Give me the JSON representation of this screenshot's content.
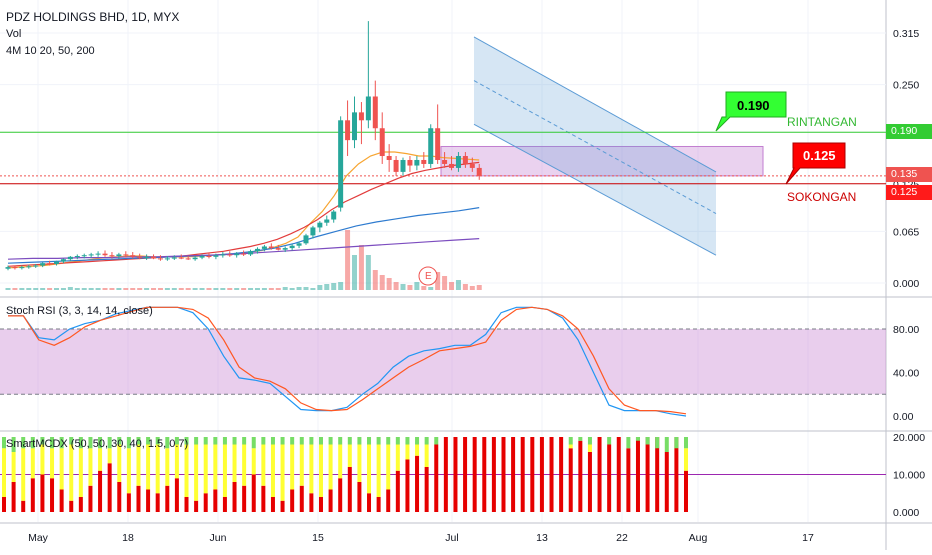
{
  "header": {
    "title": "PDZ HOLDINGS BHD, 1D, MYX",
    "vol_label": "Vol",
    "ma_label": "4M 10 20, 50, 200"
  },
  "panes": {
    "rsi_label": "Stoch RSI (3, 3, 14, 14, close)",
    "mcdx_label": "SmartMCDX (50, 50, 30, 40, 1.5, 0.7)"
  },
  "annotations": {
    "resistance_value": "0.190",
    "resistance_text": "RINTANGAN",
    "support_value": "0.125",
    "support_text": "SOKONGAN",
    "earnings_marker": "E"
  },
  "price_tags": {
    "resistance": "0.190",
    "last": "0.135",
    "support": "0.125"
  },
  "colors": {
    "up": "#26a69a",
    "down": "#ef5350",
    "resistance": "#33cc33",
    "support": "#cc0000",
    "channel": "#5b9bd5",
    "zone": "#c27ed0",
    "rsi_k": "#2196f3",
    "rsi_d": "#ff5722",
    "mcdx_red": "#e60000",
    "mcdx_yellow": "#ffff33",
    "mcdx_green": "#77dd66"
  },
  "chart_data": [
    {
      "type": "candlestick",
      "title": "PDZ HOLDINGS BHD, 1D, MYX",
      "y_ticks": [
        "0.315",
        "0.250",
        "0.190",
        "0.125",
        "0.065",
        "0.000"
      ],
      "x_ticks": [
        "May",
        "18",
        "Jun",
        "15",
        "Jul",
        "13",
        "22",
        "Aug",
        "17"
      ],
      "ohlc": [
        [
          0.018,
          0.022,
          0.016,
          0.02
        ],
        [
          0.02,
          0.022,
          0.017,
          0.019
        ],
        [
          0.019,
          0.022,
          0.017,
          0.02
        ],
        [
          0.02,
          0.023,
          0.018,
          0.021
        ],
        [
          0.021,
          0.024,
          0.019,
          0.022
        ],
        [
          0.022,
          0.026,
          0.02,
          0.025
        ],
        [
          0.025,
          0.028,
          0.022,
          0.024
        ],
        [
          0.024,
          0.028,
          0.022,
          0.027
        ],
        [
          0.027,
          0.031,
          0.025,
          0.03
        ],
        [
          0.03,
          0.034,
          0.028,
          0.033
        ],
        [
          0.033,
          0.036,
          0.03,
          0.034
        ],
        [
          0.034,
          0.037,
          0.031,
          0.035
        ],
        [
          0.035,
          0.038,
          0.032,
          0.036
        ],
        [
          0.036,
          0.04,
          0.033,
          0.037
        ],
        [
          0.037,
          0.041,
          0.033,
          0.035
        ],
        [
          0.035,
          0.039,
          0.031,
          0.034
        ],
        [
          0.034,
          0.038,
          0.03,
          0.036
        ],
        [
          0.036,
          0.04,
          0.032,
          0.035
        ],
        [
          0.035,
          0.039,
          0.031,
          0.033
        ],
        [
          0.033,
          0.037,
          0.03,
          0.032
        ],
        [
          0.032,
          0.036,
          0.029,
          0.033
        ],
        [
          0.033,
          0.036,
          0.03,
          0.031
        ],
        [
          0.031,
          0.035,
          0.028,
          0.03
        ],
        [
          0.03,
          0.034,
          0.028,
          0.031
        ],
        [
          0.031,
          0.035,
          0.029,
          0.032
        ],
        [
          0.032,
          0.036,
          0.03,
          0.031
        ],
        [
          0.031,
          0.034,
          0.029,
          0.03
        ],
        [
          0.03,
          0.034,
          0.028,
          0.032
        ],
        [
          0.032,
          0.036,
          0.03,
          0.034
        ],
        [
          0.034,
          0.038,
          0.031,
          0.033
        ],
        [
          0.033,
          0.037,
          0.03,
          0.035
        ],
        [
          0.035,
          0.039,
          0.032,
          0.036
        ],
        [
          0.036,
          0.04,
          0.033,
          0.035
        ],
        [
          0.035,
          0.039,
          0.032,
          0.037
        ],
        [
          0.037,
          0.041,
          0.034,
          0.036
        ],
        [
          0.036,
          0.042,
          0.034,
          0.04
        ],
        [
          0.04,
          0.045,
          0.037,
          0.043
        ],
        [
          0.043,
          0.048,
          0.04,
          0.046
        ],
        [
          0.046,
          0.05,
          0.042,
          0.044
        ],
        [
          0.044,
          0.048,
          0.041,
          0.042
        ],
        [
          0.042,
          0.046,
          0.039,
          0.044
        ],
        [
          0.044,
          0.049,
          0.041,
          0.047
        ],
        [
          0.047,
          0.052,
          0.044,
          0.05
        ],
        [
          0.05,
          0.062,
          0.048,
          0.06
        ],
        [
          0.06,
          0.072,
          0.056,
          0.07
        ],
        [
          0.07,
          0.078,
          0.064,
          0.076
        ],
        [
          0.076,
          0.085,
          0.072,
          0.08
        ],
        [
          0.08,
          0.092,
          0.076,
          0.09
        ],
        [
          0.095,
          0.21,
          0.09,
          0.205
        ],
        [
          0.205,
          0.23,
          0.16,
          0.18
        ],
        [
          0.18,
          0.235,
          0.17,
          0.215
        ],
        [
          0.215,
          0.228,
          0.175,
          0.205
        ],
        [
          0.205,
          0.33,
          0.195,
          0.235
        ],
        [
          0.235,
          0.255,
          0.18,
          0.195
        ],
        [
          0.195,
          0.215,
          0.15,
          0.16
        ],
        [
          0.16,
          0.175,
          0.14,
          0.155
        ],
        [
          0.155,
          0.16,
          0.135,
          0.14
        ],
        [
          0.14,
          0.158,
          0.135,
          0.155
        ],
        [
          0.155,
          0.16,
          0.14,
          0.148
        ],
        [
          0.148,
          0.16,
          0.142,
          0.155
        ],
        [
          0.155,
          0.165,
          0.145,
          0.15
        ],
        [
          0.15,
          0.2,
          0.145,
          0.195
        ],
        [
          0.195,
          0.225,
          0.15,
          0.155
        ],
        [
          0.155,
          0.165,
          0.145,
          0.15
        ],
        [
          0.15,
          0.16,
          0.142,
          0.145
        ],
        [
          0.145,
          0.165,
          0.14,
          0.16
        ],
        [
          0.16,
          0.165,
          0.145,
          0.15
        ],
        [
          0.15,
          0.158,
          0.14,
          0.145
        ],
        [
          0.145,
          0.15,
          0.13,
          0.135
        ]
      ],
      "ma_series": [
        {
          "name": "MA10",
          "values": [
            0.019,
            0.02,
            0.021,
            0.022,
            0.024,
            0.026,
            0.028,
            0.03,
            0.032,
            0.033,
            0.034,
            0.034,
            0.033,
            0.033,
            0.033,
            0.033,
            0.034,
            0.035,
            0.036,
            0.037,
            0.039,
            0.041,
            0.045,
            0.05,
            0.058,
            0.075,
            0.09,
            0.11,
            0.135,
            0.15,
            0.16,
            0.165,
            0.165,
            0.163,
            0.16,
            0.16,
            0.158,
            0.157,
            0.156,
            0.155
          ]
        },
        {
          "name": "MA20",
          "values": [
            0.021,
            0.022,
            0.023,
            0.024,
            0.025,
            0.026,
            0.027,
            0.028,
            0.029,
            0.03,
            0.031,
            0.032,
            0.033,
            0.034,
            0.036,
            0.038,
            0.04,
            0.043,
            0.046,
            0.05,
            0.055,
            0.062,
            0.07,
            0.08,
            0.092,
            0.102,
            0.11,
            0.118,
            0.125,
            0.132,
            0.138,
            0.142,
            0.145,
            0.148,
            0.15,
            0.152
          ]
        },
        {
          "name": "MA50",
          "values": [
            0.025,
            0.026,
            0.027,
            0.028,
            0.029,
            0.03,
            0.031,
            0.032,
            0.033,
            0.034,
            0.035,
            0.037,
            0.04,
            0.044,
            0.05,
            0.058,
            0.065,
            0.072,
            0.077,
            0.081,
            0.085,
            0.088,
            0.091,
            0.095
          ]
        },
        {
          "name": "MA200",
          "values": [
            0.03,
            0.031,
            0.031,
            0.032,
            0.032,
            0.033,
            0.033,
            0.034,
            0.035,
            0.036,
            0.038,
            0.04,
            0.042,
            0.044,
            0.046,
            0.048,
            0.05,
            0.052,
            0.054,
            0.056
          ]
        }
      ],
      "resistance": 0.19,
      "support": 0.125,
      "last": 0.135
    },
    {
      "type": "line",
      "title": "Stoch RSI (3, 3, 14, 14, close)",
      "y_ticks": [
        "80.00",
        "40.00",
        "0.00"
      ],
      "ylim": [
        0,
        100
      ],
      "bands": [
        20,
        80
      ],
      "series": [
        {
          "values": [
            92,
            92,
            72,
            70,
            80,
            85,
            88,
            94,
            97,
            100,
            100,
            100,
            95,
            80,
            55,
            35,
            33,
            30,
            18,
            6,
            5,
            5,
            8,
            20,
            30,
            45,
            55,
            60,
            62,
            65,
            65,
            75,
            95,
            100,
            100,
            98,
            90,
            70,
            40,
            10,
            5,
            5,
            5,
            2,
            0
          ]
        },
        {
          "values": [
            92,
            92,
            70,
            65,
            72,
            82,
            88,
            92,
            96,
            100,
            100,
            100,
            98,
            90,
            70,
            45,
            35,
            32,
            25,
            12,
            6,
            5,
            6,
            15,
            25,
            35,
            45,
            52,
            60,
            62,
            64,
            68,
            88,
            98,
            100,
            98,
            92,
            80,
            55,
            25,
            10,
            5,
            5,
            4,
            2
          ]
        }
      ]
    },
    {
      "type": "bar",
      "title": "SmartMCDX (50, 50, 30, 40, 1.5, 0.7)",
      "y_ticks": [
        "20.000",
        "10.000",
        "0.000"
      ],
      "ylim": [
        0,
        20
      ],
      "red": [
        4,
        8,
        3,
        9,
        10,
        9,
        6,
        3,
        4,
        7,
        11,
        13,
        8,
        5,
        7,
        6,
        5,
        7,
        9,
        4,
        3,
        5,
        6,
        4,
        8,
        7,
        10,
        7,
        4,
        3,
        6,
        7,
        5,
        4,
        6,
        9,
        12,
        8,
        5,
        4,
        6,
        11,
        14,
        15,
        12,
        18,
        20,
        20,
        20,
        20,
        20,
        20,
        20,
        20,
        20,
        20,
        20,
        20,
        20,
        17,
        19,
        16,
        20,
        18,
        20,
        17,
        20,
        20,
        20,
        16,
        20,
        11
      ],
      "green": [
        3,
        4,
        3,
        3,
        2,
        3,
        3,
        2,
        3,
        3,
        3,
        3,
        2,
        3,
        2,
        2,
        2,
        3,
        2,
        2,
        2,
        2,
        2,
        2,
        2,
        2,
        3,
        2,
        2,
        2,
        2,
        2,
        2,
        2,
        2,
        2,
        2,
        2,
        2,
        2,
        2,
        2,
        2,
        2,
        2,
        2,
        0,
        0,
        0,
        0,
        0,
        0,
        0,
        0,
        0,
        0,
        0,
        0,
        0,
        2,
        1,
        2,
        0,
        2,
        0,
        3,
        1,
        2,
        3,
        4,
        3,
        3
      ]
    }
  ]
}
